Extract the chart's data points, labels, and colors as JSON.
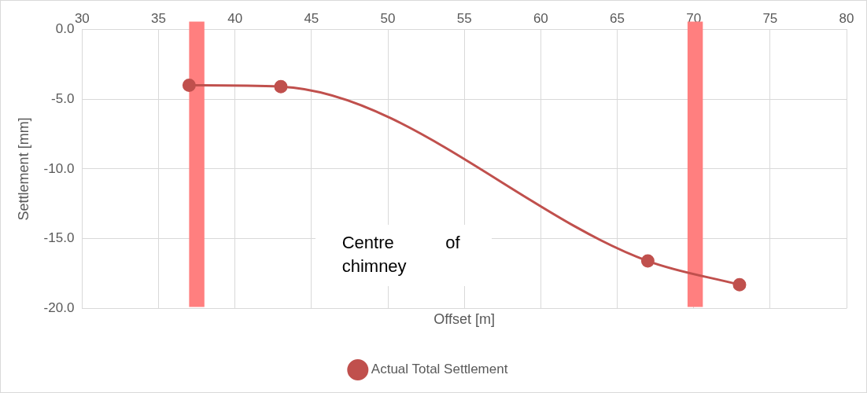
{
  "chart_data": {
    "type": "line",
    "xlabel": "Offset [m]",
    "ylabel": "Settlement [mm]",
    "x": [
      37,
      43,
      67,
      73
    ],
    "series": [
      {
        "name": "Actual Total Settlement",
        "color": "#c0504d",
        "values": [
          -4.0,
          -4.1,
          -16.6,
          -18.3
        ]
      }
    ],
    "xlim": [
      30,
      80
    ],
    "xticks": [
      30,
      35,
      40,
      45,
      50,
      55,
      60,
      65,
      70,
      75,
      80
    ],
    "ylim": [
      -20,
      0
    ],
    "yticks": [
      {
        "value": -20,
        "label": "-20.0"
      },
      {
        "value": -15,
        "label": "-15.0"
      },
      {
        "value": -10,
        "label": "-10.0"
      },
      {
        "value": -5,
        "label": "-5.0"
      },
      {
        "value": 0,
        "label": "0.0"
      }
    ],
    "bands": [
      {
        "axis": "x",
        "from": 37,
        "to": 38,
        "color": "#ff7f7f"
      },
      {
        "axis": "x",
        "from": 69.6,
        "to": 70.6,
        "color": "#ff7f7f"
      }
    ],
    "annotations": [
      "Centre of chimney"
    ],
    "grid": true,
    "legend": "bottom",
    "marker": "circle",
    "line_style": "solid"
  }
}
